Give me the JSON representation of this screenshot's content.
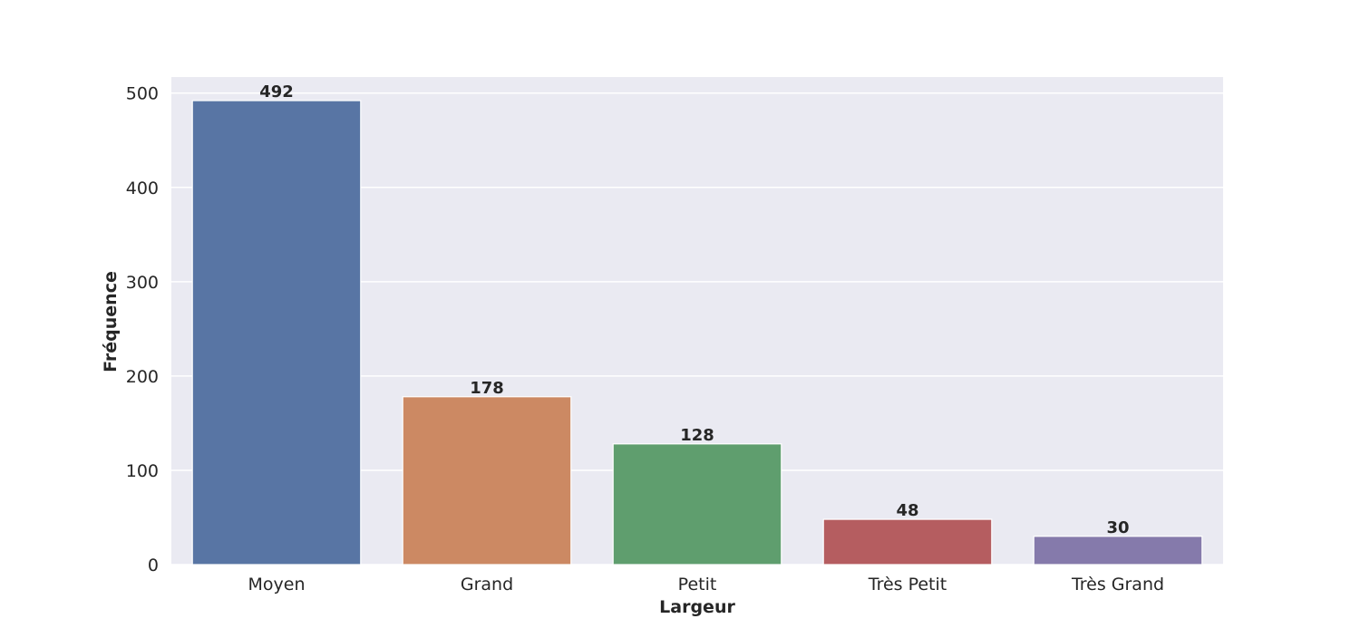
{
  "chart_data": {
    "type": "bar",
    "title": "",
    "xlabel": "Largeur",
    "ylabel": "Fréquence",
    "categories": [
      "Moyen",
      "Grand",
      "Petit",
      "Très Petit",
      "Très Grand"
    ],
    "values": [
      492,
      178,
      128,
      48,
      30
    ],
    "ylim": [
      0,
      517
    ],
    "yticks": [
      0,
      100,
      200,
      300,
      400,
      500
    ],
    "grid": true,
    "background_color": "#eaeaf2",
    "grid_color": "#ffffff",
    "colors": [
      "#5875a4",
      "#cc8963",
      "#5f9e6e",
      "#b55d60",
      "#857aab"
    ]
  }
}
